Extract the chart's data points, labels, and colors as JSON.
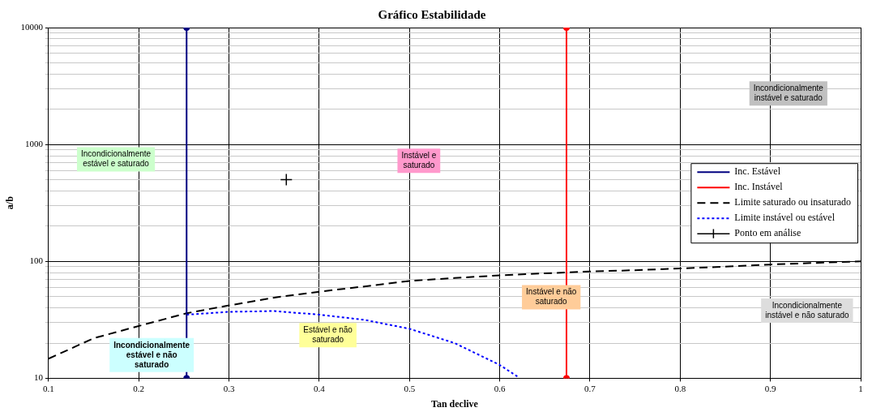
{
  "chart_data": {
    "type": "line",
    "title": "Gráfico Estabilidade",
    "xlabel": "Tan declive",
    "ylabel": "a/b",
    "xlim": [
      0.1,
      1
    ],
    "xticks": [
      0.1,
      0.2,
      0.3,
      0.4,
      0.5,
      0.6,
      0.7,
      0.8,
      0.9,
      1
    ],
    "ylim": [
      10,
      10000
    ],
    "yticks": [
      10,
      100,
      1000,
      10000
    ],
    "log": "y",
    "grid": true,
    "legend": "right",
    "series": [
      {
        "name": "Inc. Estável",
        "color": "#000080",
        "x": [
          0.253,
          0.253
        ],
        "values": [
          10,
          10000
        ],
        "marker": "circle",
        "line_style": "solid"
      },
      {
        "name": "Inc. Instável",
        "color": "#ff0000",
        "x": [
          0.674,
          0.674
        ],
        "values": [
          10,
          10000
        ],
        "marker": "circle",
        "line_style": "solid"
      },
      {
        "name": "Limite saturado ou insaturado",
        "color": "#000000",
        "x": [
          0.1,
          0.15,
          0.2,
          0.253,
          0.3,
          0.35,
          0.4,
          0.45,
          0.5,
          0.55,
          0.6,
          0.65,
          0.7,
          0.75,
          0.8,
          0.85,
          0.9,
          0.95,
          1
        ],
        "values": [
          14.7,
          22,
          28,
          36,
          42,
          49,
          55,
          61,
          68,
          72,
          76,
          79,
          82,
          84,
          87,
          90,
          94,
          97,
          100
        ],
        "marker": "none",
        "line_style": "dashed"
      },
      {
        "name": "Limite instável ou estável",
        "color": "#0000ff",
        "x": [
          0.253,
          0.3,
          0.35,
          0.4,
          0.45,
          0.5,
          0.55,
          0.6,
          0.62
        ],
        "values": [
          35,
          37,
          37.6,
          35,
          31.6,
          26.5,
          20,
          13,
          10.3
        ],
        "marker": "none",
        "line_style": "dotted"
      },
      {
        "name": "Ponto em análise",
        "type": "scatter",
        "color": "#000000",
        "x": [
          0.3635
        ],
        "values": [
          500
        ],
        "marker": "cross"
      }
    ],
    "annotations": [
      "Incondicionalmente\nestável e saturado",
      "Instável e\nsaturado",
      "Incondicionalmente\ninstável e saturado",
      "Instável e não\nsaturado",
      "Estável e não\nsaturado",
      "Incondicionalmente\nestável e não\nsaturado",
      "Incondicionalmente\ninstável e não saturado"
    ]
  }
}
